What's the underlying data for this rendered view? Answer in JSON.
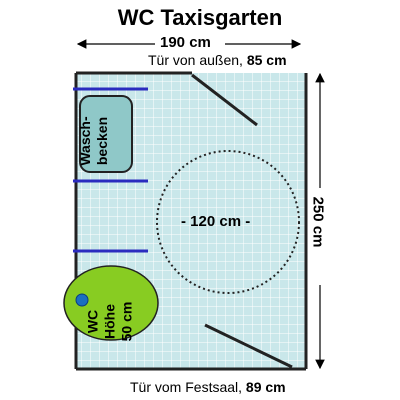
{
  "title": "WC Taxisgarten",
  "dimensions": {
    "width": "190 cm",
    "depth": "250 cm",
    "turning_circle": "- 120 cm -"
  },
  "doors": {
    "top_prefix": "Tür von außen,",
    "top_width": "85 cm",
    "bottom_prefix": "Tür vom Festsaal,",
    "bottom_width": "89 cm"
  },
  "fixtures": {
    "sink_line1": "Wasch-",
    "sink_line2": "becken",
    "wc_line1": "WC",
    "wc_line2": "Höhe",
    "wc_line3": "50 cm"
  },
  "colors": {
    "floor": "#c9e7ea",
    "grid": "#ffffff",
    "wall": "#222222",
    "grab_bar": "#2b2bbf",
    "sink": "#8fc8c8",
    "wc": "#88cc22",
    "wc_marker": "#1a6fc0"
  }
}
